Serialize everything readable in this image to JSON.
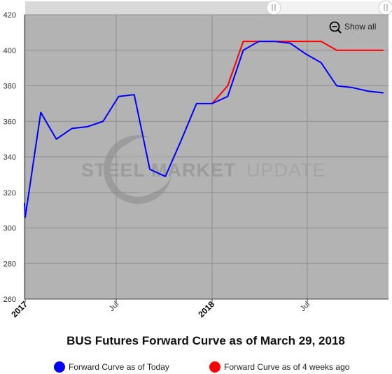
{
  "chart_data": {
    "type": "line",
    "title": "BUS Futures Forward Curve as of March 29, 2018",
    "ylim": [
      260,
      420
    ],
    "yticks": [
      260,
      280,
      300,
      320,
      340,
      360,
      380,
      400,
      420
    ],
    "xticks": [
      {
        "label": "2017",
        "major": true
      },
      {
        "label": "Jul",
        "major": false
      },
      {
        "label": "2018",
        "major": true
      },
      {
        "label": "Jul",
        "major": false
      }
    ],
    "grid": true,
    "legend_position": "bottom",
    "series": [
      {
        "name": "Forward Curve as of Today",
        "color": "#0000ff",
        "x": [
          "2016-12",
          "2017-01",
          "2017-02",
          "2017-03",
          "2017-04",
          "2017-05",
          "2017-06",
          "2017-07",
          "2017-08",
          "2017-09",
          "2017-10",
          "2017-11",
          "2017-12",
          "2018-01",
          "2018-02",
          "2018-03",
          "2018-04",
          "2018-05",
          "2018-06",
          "2018-07",
          "2018-08",
          "2018-09",
          "2018-10",
          "2018-11",
          "2018-12"
        ],
        "values": [
          314,
          306,
          365,
          350,
          356,
          357,
          360,
          374,
          375,
          333,
          329,
          349,
          370,
          370,
          374,
          400,
          405,
          405,
          404,
          398,
          393,
          380,
          379,
          377,
          376
        ]
      },
      {
        "name": "Forward Curve as of 4 weeks ago",
        "color": "#ff0000",
        "x": [
          "2018-01",
          "2018-02",
          "2018-03",
          "2018-04",
          "2018-05",
          "2018-06",
          "2018-07",
          "2018-08",
          "2018-09",
          "2018-10",
          "2018-11",
          "2018-12"
        ],
        "values": [
          370,
          380,
          405,
          405,
          405,
          405,
          405,
          405,
          400,
          400,
          400,
          400
        ]
      }
    ]
  },
  "watermark": {
    "strong": "STEEL MARKET",
    "light": "UPDATE"
  },
  "controls": {
    "show_all_label": "Show all",
    "zoom_icon": "zoom-out-icon",
    "handle_icon": "drag-handle-icon"
  },
  "colors": {
    "plot_background": "#b3b3b3",
    "grid": "#8f8f8f",
    "axis": "#444444"
  }
}
